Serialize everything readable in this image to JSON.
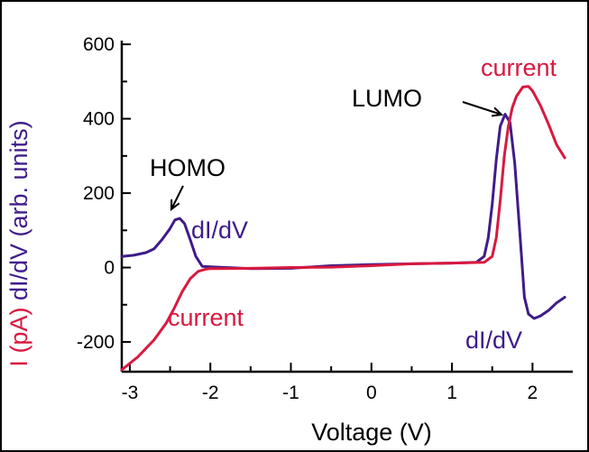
{
  "chart_data": {
    "type": "line",
    "xlabel": "Voltage (V)",
    "ylabel_parts": [
      {
        "text": "I (pA)",
        "color": "#d8193f"
      },
      {
        "text": "dI/dV (arb. units)",
        "color": "#3f1c8a"
      }
    ],
    "xlim": [
      -3.1,
      2.5
    ],
    "ylim": [
      -280,
      610
    ],
    "x_ticks": [
      -3,
      -2,
      -1,
      0,
      1,
      2
    ],
    "y_ticks": [
      -200,
      0,
      200,
      400,
      600
    ],
    "grid": false,
    "series": [
      {
        "id": "didv",
        "color": "#3f1c8a",
        "points": [
          [
            -3.1,
            30
          ],
          [
            -2.95,
            33
          ],
          [
            -2.8,
            40
          ],
          [
            -2.7,
            50
          ],
          [
            -2.6,
            75
          ],
          [
            -2.5,
            105
          ],
          [
            -2.44,
            128
          ],
          [
            -2.38,
            132
          ],
          [
            -2.32,
            118
          ],
          [
            -2.25,
            75
          ],
          [
            -2.18,
            30
          ],
          [
            -2.1,
            3
          ],
          [
            -2.0,
            2
          ],
          [
            -1.5,
            -3
          ],
          [
            -1.0,
            -2
          ],
          [
            -0.5,
            5
          ],
          [
            0.0,
            8
          ],
          [
            0.5,
            10
          ],
          [
            1.0,
            12
          ],
          [
            1.3,
            14
          ],
          [
            1.4,
            30
          ],
          [
            1.45,
            80
          ],
          [
            1.5,
            170
          ],
          [
            1.55,
            290
          ],
          [
            1.6,
            380
          ],
          [
            1.66,
            412
          ],
          [
            1.72,
            390
          ],
          [
            1.78,
            280
          ],
          [
            1.84,
            100
          ],
          [
            1.9,
            -80
          ],
          [
            1.95,
            -125
          ],
          [
            2.02,
            -137
          ],
          [
            2.1,
            -130
          ],
          [
            2.2,
            -115
          ],
          [
            2.3,
            -95
          ],
          [
            2.4,
            -80
          ]
        ]
      },
      {
        "id": "current",
        "color": "#d8193f",
        "points": [
          [
            -3.1,
            -275
          ],
          [
            -2.9,
            -240
          ],
          [
            -2.7,
            -195
          ],
          [
            -2.55,
            -150
          ],
          [
            -2.45,
            -110
          ],
          [
            -2.35,
            -65
          ],
          [
            -2.25,
            -30
          ],
          [
            -2.15,
            -10
          ],
          [
            -2.05,
            -4
          ],
          [
            -2.0,
            -3
          ],
          [
            -1.5,
            -2
          ],
          [
            -1.0,
            0
          ],
          [
            -0.5,
            1
          ],
          [
            0.0,
            5
          ],
          [
            0.5,
            10
          ],
          [
            1.0,
            12
          ],
          [
            1.4,
            14
          ],
          [
            1.5,
            30
          ],
          [
            1.55,
            80
          ],
          [
            1.6,
            180
          ],
          [
            1.65,
            300
          ],
          [
            1.7,
            380
          ],
          [
            1.75,
            430
          ],
          [
            1.8,
            460
          ],
          [
            1.88,
            485
          ],
          [
            1.95,
            487
          ],
          [
            2.0,
            475
          ],
          [
            2.1,
            435
          ],
          [
            2.2,
            385
          ],
          [
            2.3,
            330
          ],
          [
            2.4,
            295
          ]
        ]
      }
    ],
    "annotations": {
      "current_top": {
        "text": "current",
        "color": "#d8193f"
      },
      "lumo": {
        "text": "LUMO",
        "color": "#000000"
      },
      "homo": {
        "text": "HOMO",
        "color": "#000000"
      },
      "didv_left": {
        "text": "dI/dV",
        "color": "#3f1c8a"
      },
      "current_left": {
        "text": "current",
        "color": "#d8193f"
      },
      "didv_right": {
        "text": "dI/dV",
        "color": "#3f1c8a"
      }
    }
  }
}
